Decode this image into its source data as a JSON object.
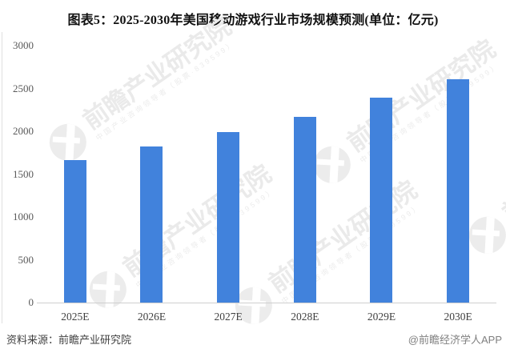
{
  "title": "图表5：2025-2030年美国移动游戏行业市场规模预测(单位：亿元)",
  "chart_data": {
    "type": "bar",
    "title": "2025-2030年美国移动游戏行业市场规模预测",
    "unit": "亿元",
    "categories": [
      "2025E",
      "2026E",
      "2027E",
      "2028E",
      "2029E",
      "2030E"
    ],
    "values": [
      1660,
      1820,
      1990,
      2170,
      2390,
      2610
    ],
    "xlabel": "",
    "ylabel": "",
    "ylim": [
      0,
      3000
    ],
    "yticks": [
      0,
      500,
      1000,
      1500,
      2000,
      2500,
      3000
    ],
    "grid": false,
    "legend": false,
    "bar_color": "#4182dc"
  },
  "footer": {
    "source": "资料来源：前瞻产业研究院",
    "credit": "@前瞻经济学人APP"
  },
  "watermark": {
    "brand": "前瞻产业研究院",
    "tagline": "中国产业咨询领导者（股票·839599）"
  },
  "colors": {
    "bar": "#4182dc",
    "axis_line": "#cfcfcf",
    "y_tick_label": "#595959",
    "x_tick_label": "#404040",
    "title_text": "#111111",
    "footer_source": "#404040",
    "footer_credit": "#7f7f7f",
    "watermark": "#eaeaea"
  }
}
